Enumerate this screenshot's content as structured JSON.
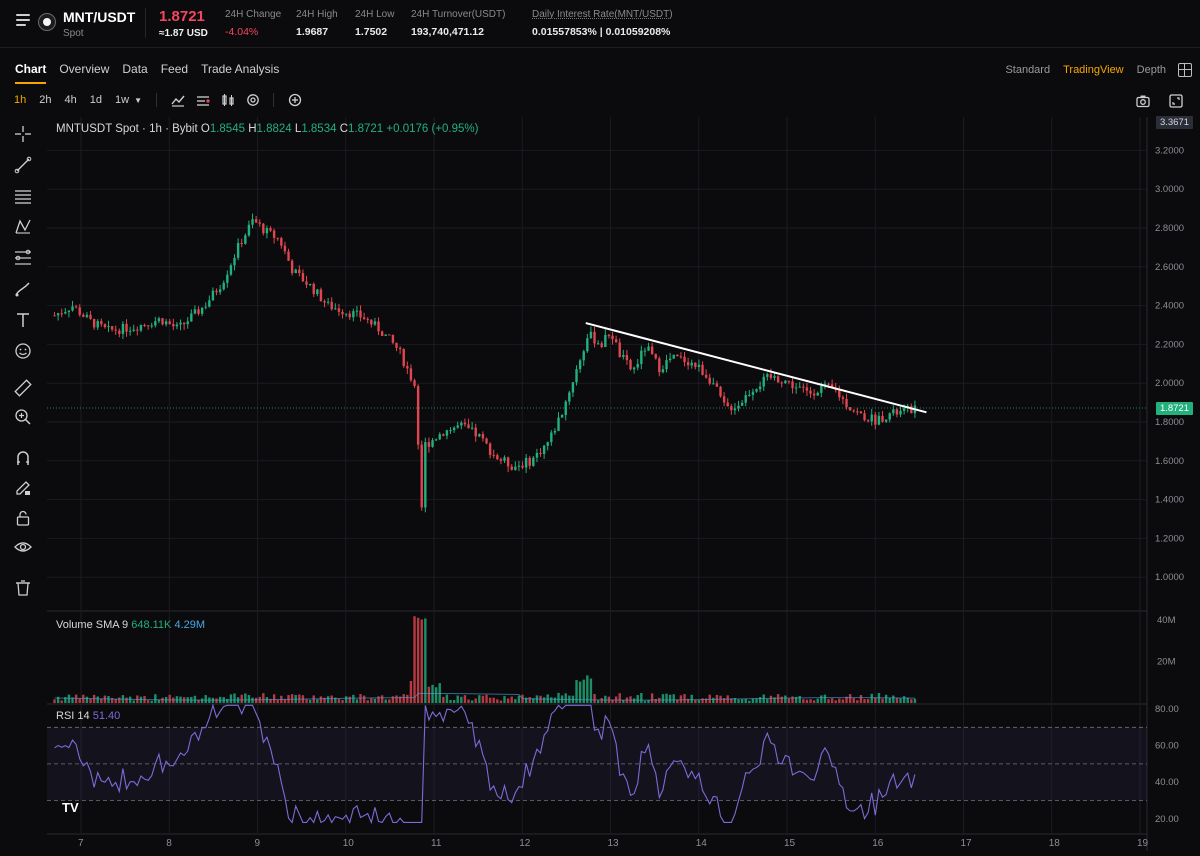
{
  "header": {
    "pair": "MNT/USDT",
    "type": "Spot",
    "price": "1.8721",
    "price_usd": "≈1.87 USD",
    "stats": [
      {
        "label": "24H Change",
        "value": "-4.04%",
        "negative": true
      },
      {
        "label": "24H High",
        "value": "1.9687"
      },
      {
        "label": "24H Low",
        "value": "1.7502"
      },
      {
        "label": "24H Turnover(USDT)",
        "value": "193,740,471.12"
      },
      {
        "label": "Daily Interest Rate(MNT/USDT)",
        "value": "0.01557853% | 0.01059208%"
      }
    ]
  },
  "tabs": [
    "Chart",
    "Overview",
    "Data",
    "Feed",
    "Trade Analysis"
  ],
  "active_tab": "Chart",
  "views": [
    "Standard",
    "TradingView",
    "Depth"
  ],
  "active_view": "TradingView",
  "timeframes": [
    "1h",
    "2h",
    "4h",
    "1d",
    "1w"
  ],
  "active_timeframe": "1h",
  "toolbar_icons": [
    "indicators-icon",
    "compare-icon",
    "candle-style-icon",
    "settings-icon",
    "add-icon"
  ],
  "right_toolbar_icons": [
    "camera-icon",
    "fullscreen-icon"
  ],
  "left_tools": [
    "crosshair-icon",
    "trend-line-icon",
    "horizontal-lines-icon",
    "pattern-icon",
    "fib-icon",
    "brush-icon",
    "text-icon",
    "emoji-icon",
    "ruler-icon",
    "zoom-icon",
    "magnet-icon",
    "pencil-lock-icon",
    "lock-icon",
    "eye-icon",
    "trash-icon"
  ],
  "legend": {
    "symbol": "MNTUSDT Spot · 1h · Bybit",
    "o_label": "O",
    "o": "1.8545",
    "h_label": "H",
    "h": "1.8824",
    "l_label": "L",
    "l": "1.8534",
    "c_label": "C",
    "c": "1.8721",
    "change": "+0.0176 (+0.95%)"
  },
  "volume_legend": {
    "name": "Volume SMA 9",
    "v1": "648.11K",
    "v2": "4.29M"
  },
  "rsi_legend": {
    "name": "RSI 14",
    "value": "51.40"
  },
  "tv_logo": "TV",
  "colors": {
    "up": "#22b07d",
    "down": "#e0464f",
    "accent": "#f7a600",
    "rsi": "#7e6ad8"
  },
  "chart_data": {
    "type": "candlestick",
    "price_axis": {
      "ticks": [
        "3.2000",
        "3.0000",
        "2.8000",
        "2.6000",
        "2.4000",
        "2.2000",
        "2.0000",
        "1.8000",
        "1.6000",
        "1.4000",
        "1.2000",
        "1.0000"
      ],
      "top_label": "3.3671",
      "current_label": "1.8721"
    },
    "volume_axis": {
      "ticks": [
        "40M",
        "20M"
      ]
    },
    "rsi_axis": {
      "ticks": [
        "80.00",
        "60.00",
        "40.00",
        "20.00"
      ],
      "bands": [
        70,
        50,
        30
      ]
    },
    "x_axis": {
      "ticks": [
        "7",
        "8",
        "9",
        "10",
        "11",
        "12",
        "13",
        "14",
        "15",
        "16",
        "17",
        "18",
        "19"
      ]
    },
    "price_path": [
      [
        6.7,
        2.35
      ],
      [
        6.9,
        2.4
      ],
      [
        7.1,
        2.32
      ],
      [
        7.3,
        2.27
      ],
      [
        7.6,
        2.29
      ],
      [
        7.9,
        2.33
      ],
      [
        8.1,
        2.28
      ],
      [
        8.4,
        2.4
      ],
      [
        8.6,
        2.52
      ],
      [
        8.8,
        2.72
      ],
      [
        8.95,
        2.84
      ],
      [
        9.1,
        2.78
      ],
      [
        9.25,
        2.74
      ],
      [
        9.4,
        2.58
      ],
      [
        9.6,
        2.5
      ],
      [
        9.8,
        2.4
      ],
      [
        10.0,
        2.37
      ],
      [
        10.2,
        2.34
      ],
      [
        10.4,
        2.27
      ],
      [
        10.6,
        2.17
      ],
      [
        10.8,
        1.97
      ],
      [
        10.85,
        1.28
      ],
      [
        10.9,
        1.68
      ],
      [
        11.1,
        1.75
      ],
      [
        11.3,
        1.78
      ],
      [
        11.5,
        1.73
      ],
      [
        11.7,
        1.62
      ],
      [
        11.9,
        1.57
      ],
      [
        12.1,
        1.6
      ],
      [
        12.3,
        1.7
      ],
      [
        12.45,
        1.85
      ],
      [
        12.6,
        2.05
      ],
      [
        12.75,
        2.25
      ],
      [
        12.9,
        2.2
      ],
      [
        13.0,
        2.27
      ],
      [
        13.1,
        2.15
      ],
      [
        13.25,
        2.06
      ],
      [
        13.4,
        2.19
      ],
      [
        13.55,
        2.08
      ],
      [
        13.7,
        2.13
      ],
      [
        13.85,
        2.12
      ],
      [
        14.0,
        2.08
      ],
      [
        14.15,
        2.01
      ],
      [
        14.3,
        1.87
      ],
      [
        14.45,
        1.89
      ],
      [
        14.6,
        1.97
      ],
      [
        14.8,
        2.03
      ],
      [
        14.95,
        2.02
      ],
      [
        15.1,
        1.98
      ],
      [
        15.25,
        1.95
      ],
      [
        15.4,
        1.98
      ],
      [
        15.55,
        1.96
      ],
      [
        15.7,
        1.88
      ],
      [
        15.85,
        1.83
      ],
      [
        16.0,
        1.81
      ],
      [
        16.15,
        1.84
      ],
      [
        16.3,
        1.85
      ],
      [
        16.45,
        1.87
      ]
    ],
    "trendline": {
      "from": [
        12.72,
        2.31
      ],
      "to": [
        16.58,
        1.85
      ]
    },
    "current_price": 1.8721
  }
}
